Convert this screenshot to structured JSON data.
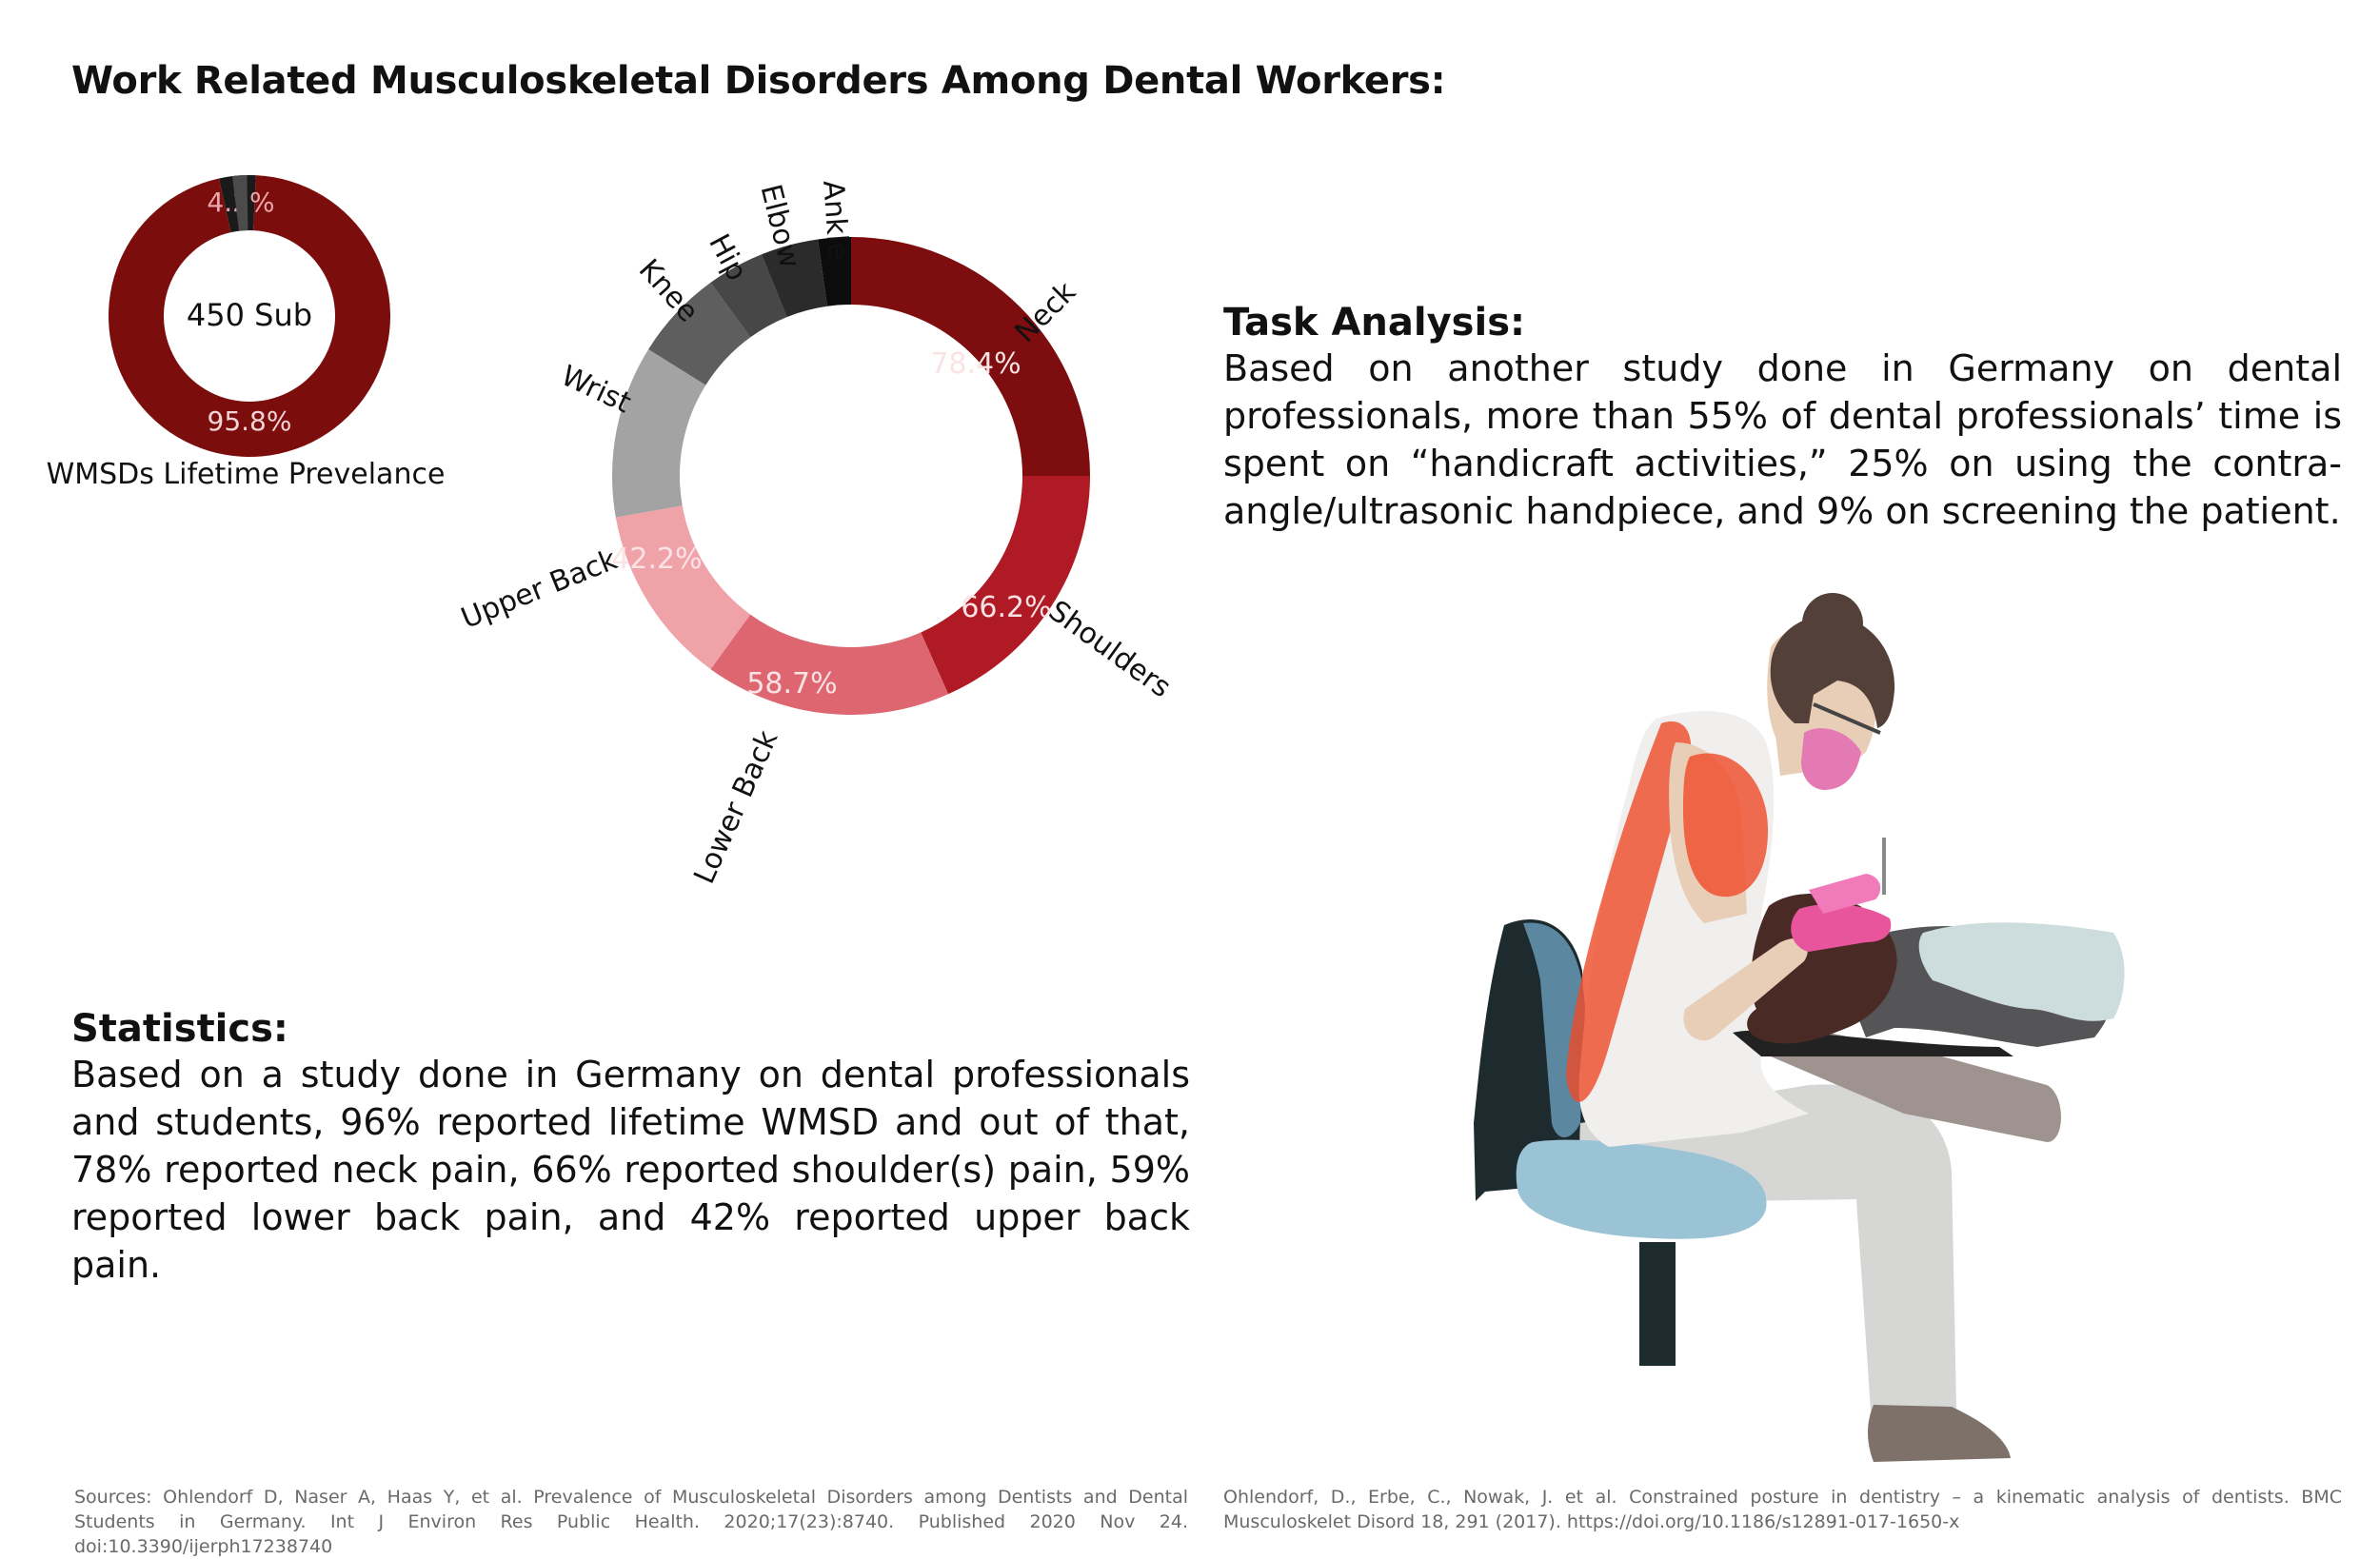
{
  "title": "Work Related Musculoskeletal Disorders Among Dental Workers:",
  "chart_data": [
    {
      "type": "pie",
      "caption": "WMSDs Lifetime Prevelance",
      "center_label": "450 Sub",
      "slices": [
        {
          "label": "95.8%",
          "value": 95.8,
          "color": "#7c0d0d"
        },
        {
          "label": "4.2%",
          "value": 4.2,
          "color": "#1a1a1a"
        }
      ]
    },
    {
      "type": "pie",
      "slices": [
        {
          "name": "Neck",
          "value": 78.4,
          "value_label": "78.4%",
          "color": "#7d0d0f"
        },
        {
          "name": "Shoulders",
          "value": 66.2,
          "value_label": "66.2%",
          "color": "#b01a24"
        },
        {
          "name": "Lower Back",
          "value": 58.7,
          "value_label": "58.7%",
          "color": "#de6670"
        },
        {
          "name": "Upper Back",
          "value": 42.2,
          "value_label": "42.2%",
          "color": "#efa3a9"
        },
        {
          "name": "Wrist",
          "value_label": "",
          "color": "#a3a3a3"
        },
        {
          "name": "Knee",
          "value_label": "",
          "color": "#5e5e5e"
        },
        {
          "name": "Hip",
          "value_label": "",
          "color": "#474747"
        },
        {
          "name": "Elbow",
          "value_label": "",
          "color": "#2b2b2b"
        },
        {
          "name": "Ankle",
          "value_label": "",
          "color": "#0c0c0c"
        }
      ]
    }
  ],
  "task_analysis": {
    "heading": "Task Analysis:",
    "text": "Based on another study done in Germany on dental professionals, more than 55% of dental professionals’ time is spent on “handicraft activities,” 25% on using the contra-angle/ultrasonic handpiece, and 9% on screening the patient."
  },
  "statistics": {
    "heading": "Statistics:",
    "text": "Based on a study done in Germany on dental professionals and students, 96% reported lifetime WMSD and out of that, 78% reported neck pain, 66% reported shoulder(s) pain, 59% reported lower back pain, and 42% reported upper back pain."
  },
  "sources": {
    "left": "Sources: Ohlendorf D, Naser A, Haas Y, et al. Prevalence of Musculoskeletal Disorders among Dentists and Dental Students in Germany. Int J Environ Res Public Health. 2020;17(23):8740. Published 2020 Nov 24. doi:10.3390/ijerph17238740",
    "right": "Ohlendorf, D., Erbe, C., Nowak, J. et al. Constrained posture in dentistry – a kinematic analysis of dentists. BMC Musculoskelet Disord 18, 291 (2017). https://doi.org/10.1186/s12891-017-1650-x"
  }
}
